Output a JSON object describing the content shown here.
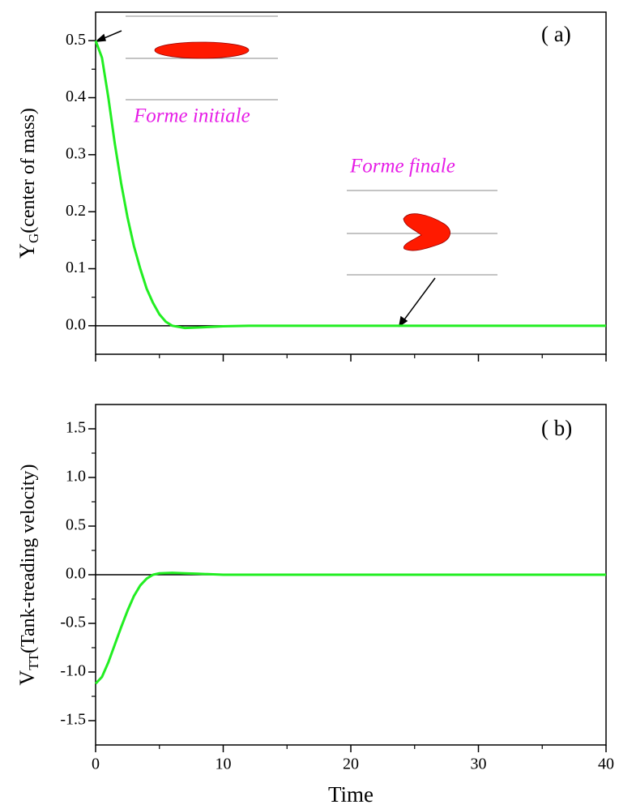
{
  "chart_data": [
    {
      "type": "line",
      "annotation": "( a)",
      "ylabel": {
        "main": "Y",
        "sub": "G",
        "rest": "(center of mass)"
      },
      "notes": [
        "Forme initiale",
        "Forme finale"
      ],
      "x": [
        0,
        0.5,
        1,
        1.5,
        2,
        2.5,
        3,
        3.5,
        4,
        4.5,
        5,
        5.5,
        6,
        7,
        8,
        9,
        10,
        12,
        20,
        30,
        40
      ],
      "series": [
        {
          "color": "#22ee22",
          "values": [
            0.5,
            0.47,
            0.4,
            0.32,
            0.25,
            0.19,
            0.14,
            0.1,
            0.065,
            0.04,
            0.02,
            0.007,
            0.0,
            -0.004,
            -0.003,
            -0.002,
            -0.001,
            0,
            0,
            0,
            0
          ]
        }
      ],
      "xlim": [
        0,
        40
      ],
      "xticks": [
        0,
        10,
        20,
        30,
        40
      ],
      "ylim": [
        -0.05,
        0.55
      ],
      "yticks": [
        {
          "value": 0,
          "label": "0.0"
        },
        0.1,
        0.2,
        0.3,
        0.4,
        0.5
      ]
    },
    {
      "type": "line",
      "annotation": "( b)",
      "ylabel": {
        "main": "V",
        "sub": "TT",
        "rest": "(Tank-treading velocity)"
      },
      "xlabel": "Time",
      "x": [
        0,
        0.5,
        1,
        1.5,
        2,
        2.5,
        3,
        3.5,
        4,
        4.5,
        5,
        6,
        7,
        8,
        10,
        20,
        40
      ],
      "series": [
        {
          "color": "#22ee22",
          "values": [
            -1.12,
            -1.05,
            -0.9,
            -0.72,
            -0.54,
            -0.37,
            -0.22,
            -0.11,
            -0.04,
            0.0,
            0.015,
            0.02,
            0.015,
            0.01,
            0.0,
            0,
            0
          ]
        }
      ],
      "xlim": [
        0,
        40
      ],
      "xticks": [
        0,
        10,
        20,
        30,
        40
      ],
      "ylim": [
        -1.75,
        1.75
      ],
      "yticks": [
        -1.5,
        {
          "value": -1,
          "label": "-1.0"
        },
        -0.5,
        {
          "value": 0,
          "label": "0.0"
        },
        0.5,
        {
          "value": 1,
          "label": "1.0"
        },
        1.5
      ]
    }
  ]
}
